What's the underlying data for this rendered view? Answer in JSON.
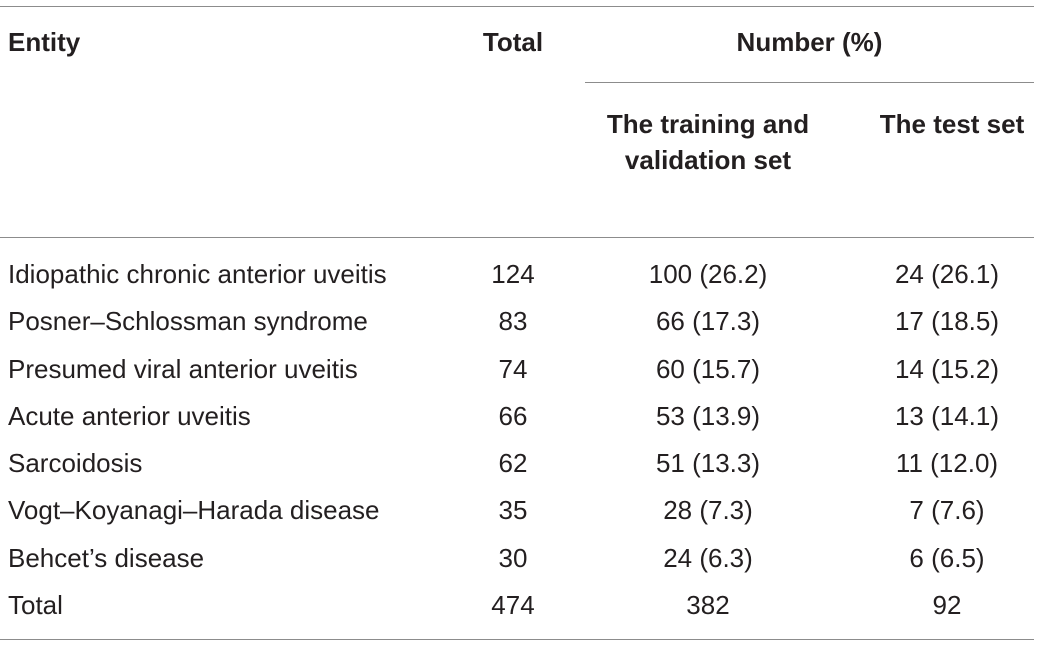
{
  "table": {
    "headers": {
      "entity": "Entity",
      "total": "Total",
      "number_group": "Number (%)",
      "training": "The training and validation set",
      "test": "The test set"
    },
    "rows": [
      {
        "entity": "Idiopathic chronic anterior uveitis",
        "total": "124",
        "training": "100 (26.2)",
        "test": "24 (26.1)"
      },
      {
        "entity": "Posner–Schlossman syndrome",
        "total": "83",
        "training": "66 (17.3)",
        "test": "17 (18.5)"
      },
      {
        "entity": "Presumed viral anterior uveitis",
        "total": "74",
        "training": "60 (15.7)",
        "test": "14 (15.2)"
      },
      {
        "entity": "Acute anterior uveitis",
        "total": "66",
        "training": "53 (13.9)",
        "test": "13 (14.1)"
      },
      {
        "entity": "Sarcoidosis",
        "total": "62",
        "training": "51 (13.3)",
        "test": "11 (12.0)"
      },
      {
        "entity": "Vogt–Koyanagi–Harada disease",
        "total": "35",
        "training": "28 (7.3)",
        "test": "7 (7.6)"
      },
      {
        "entity": "Behcet’s disease",
        "total": "30",
        "training": "24 (6.3)",
        "test": "6 (6.5)"
      },
      {
        "entity": "Total",
        "total": "474",
        "training": "382",
        "test": "92"
      }
    ]
  }
}
